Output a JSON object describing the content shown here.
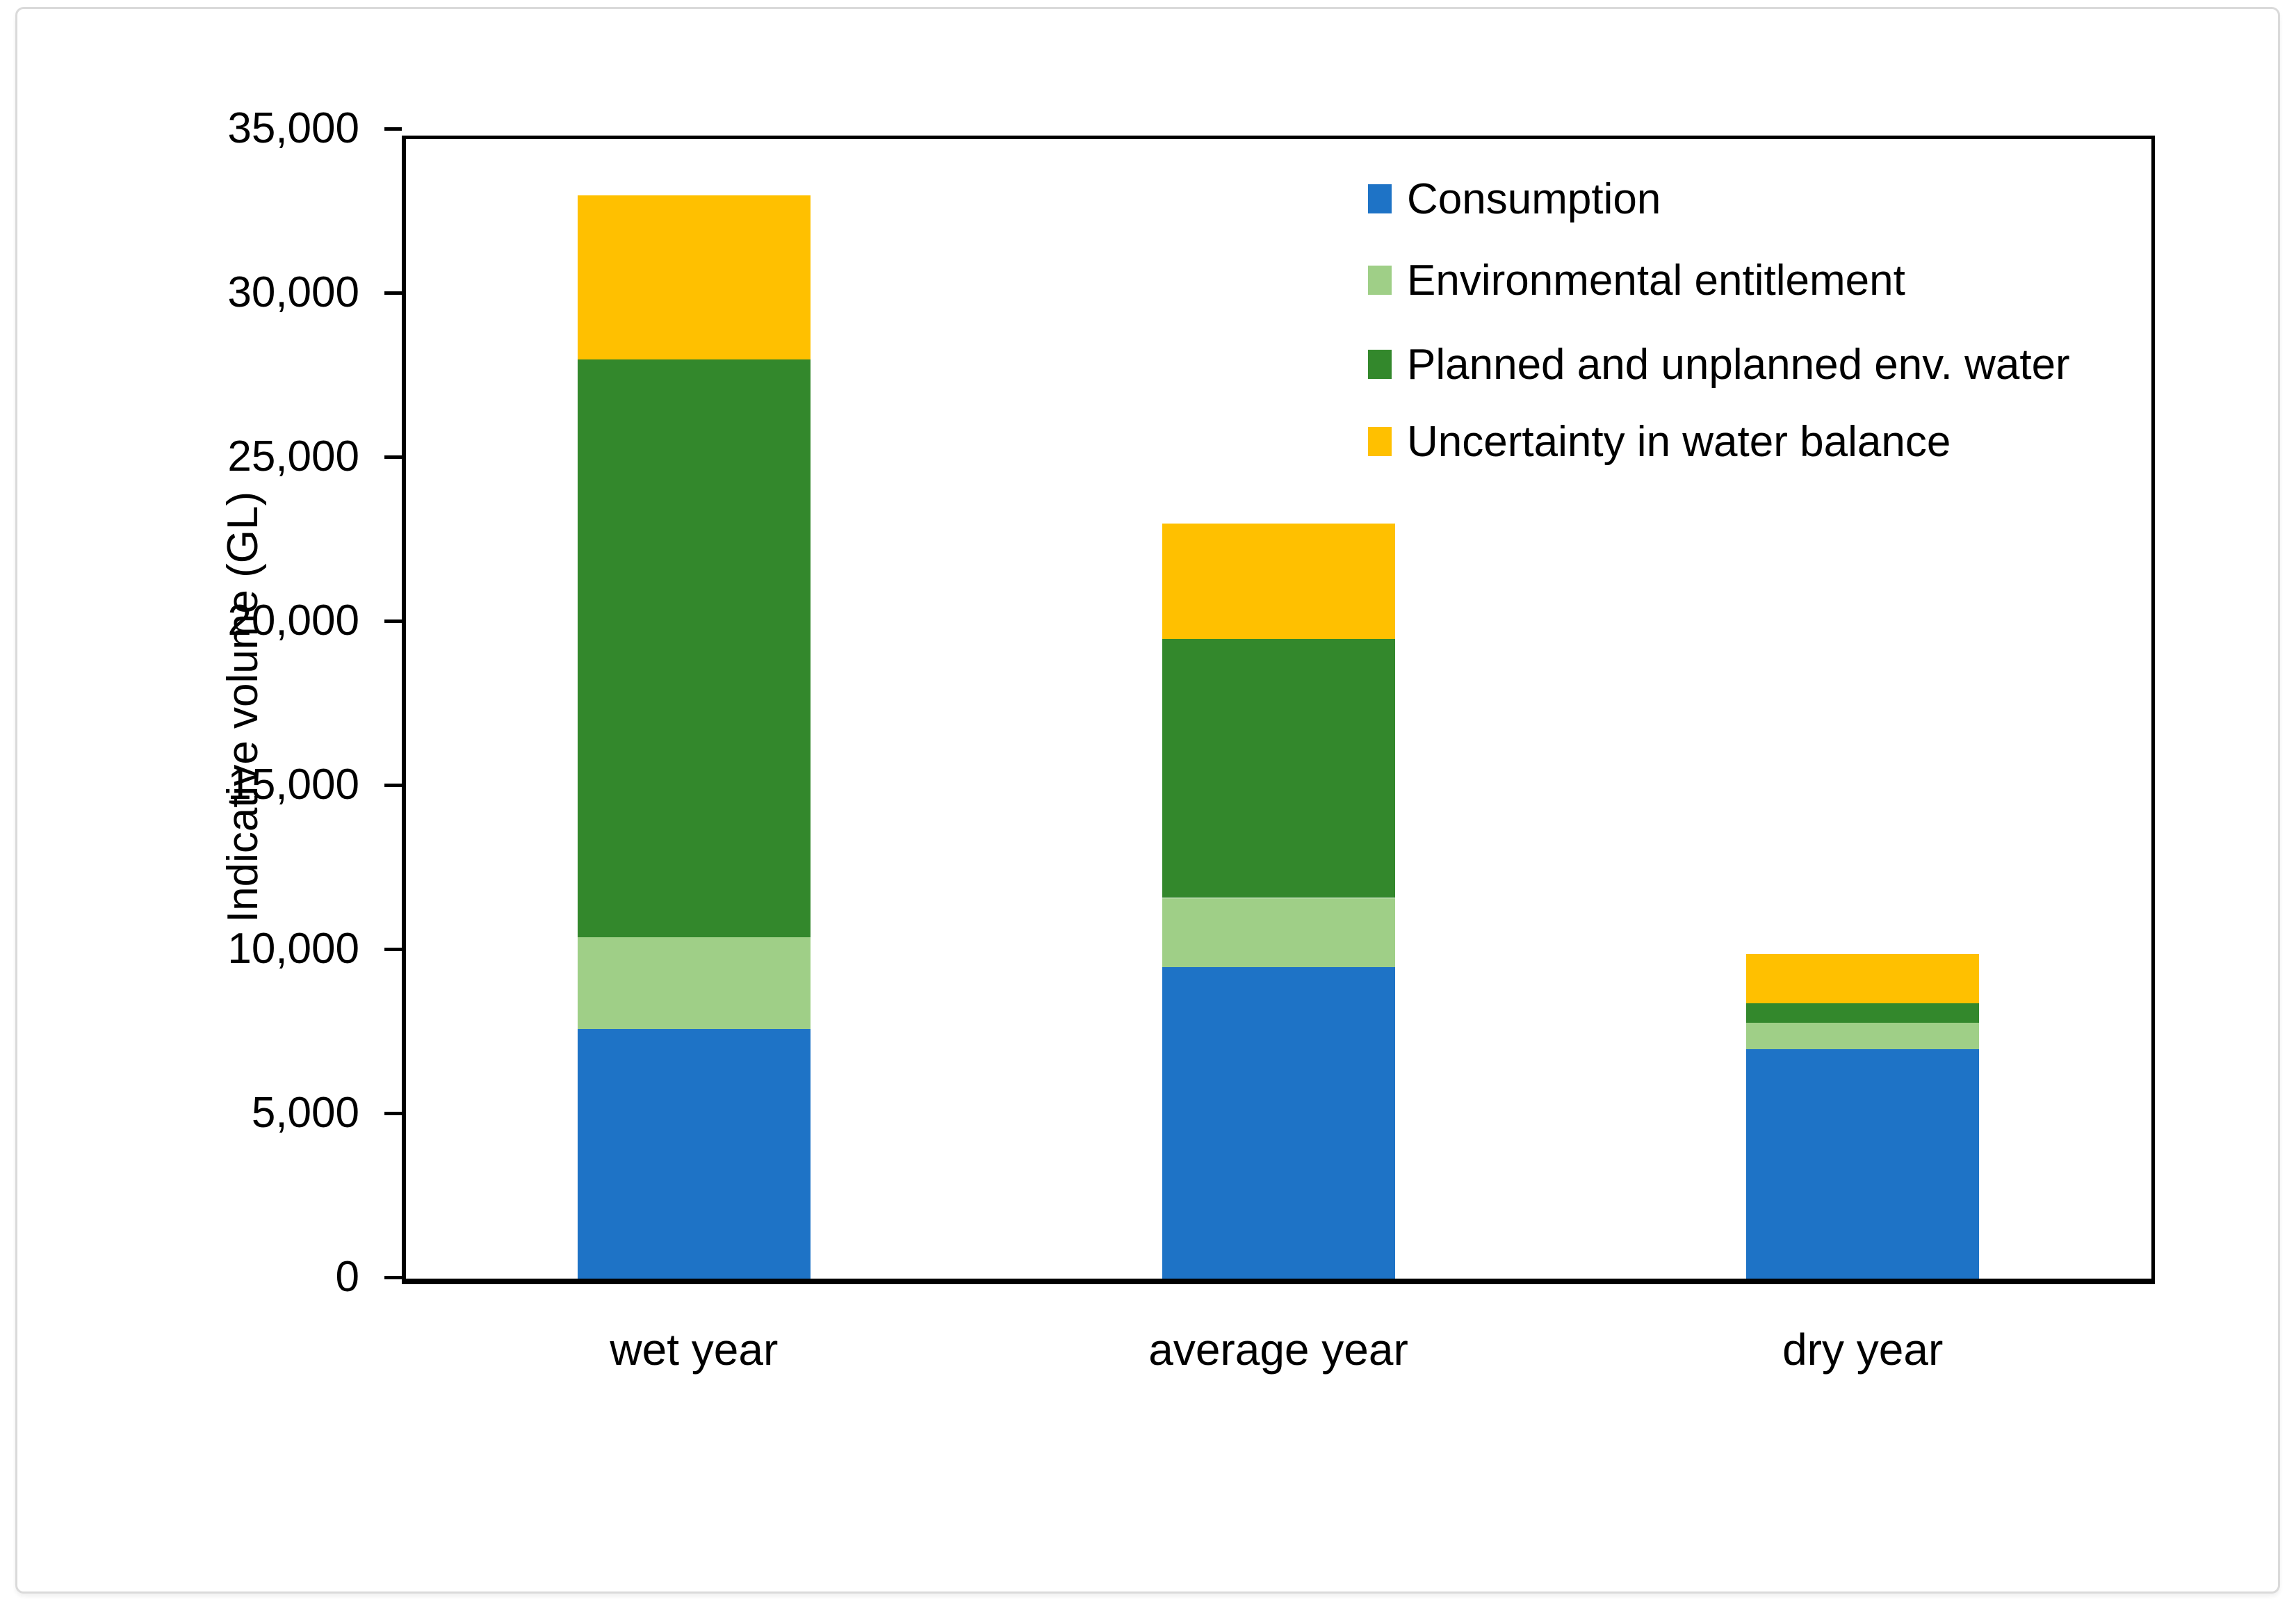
{
  "chart_data": {
    "type": "bar",
    "stacked": true,
    "title": "",
    "categories": [
      "wet year",
      "average year",
      "dry year"
    ],
    "series": [
      {
        "name": "Consumption",
        "color": "#1E73C6",
        "values": [
          7600,
          9500,
          7000
        ]
      },
      {
        "name": "Environmental entitlement",
        "color": "#9FCF87",
        "values": [
          2800,
          2100,
          800
        ]
      },
      {
        "name": "Planned and unplanned env. water",
        "color": "#33882C",
        "values": [
          17600,
          7900,
          600
        ]
      },
      {
        "name": "Uncertainty in water balance",
        "color": "#FFC000",
        "values": [
          5000,
          3500,
          1500
        ]
      }
    ],
    "totals": [
      33000,
      23000,
      9900
    ],
    "xlabel": "",
    "ylabel": "Indicative volume (GL)",
    "ylim": [
      0,
      35000
    ],
    "ytick_step": 5000,
    "ytick_labels": [
      "0",
      "5,000",
      "10,000",
      "15,000",
      "20,000",
      "25,000",
      "30,000",
      "35,000"
    ],
    "grid": false,
    "legend_position": "top-right-inside",
    "axis_color": "#000000"
  }
}
